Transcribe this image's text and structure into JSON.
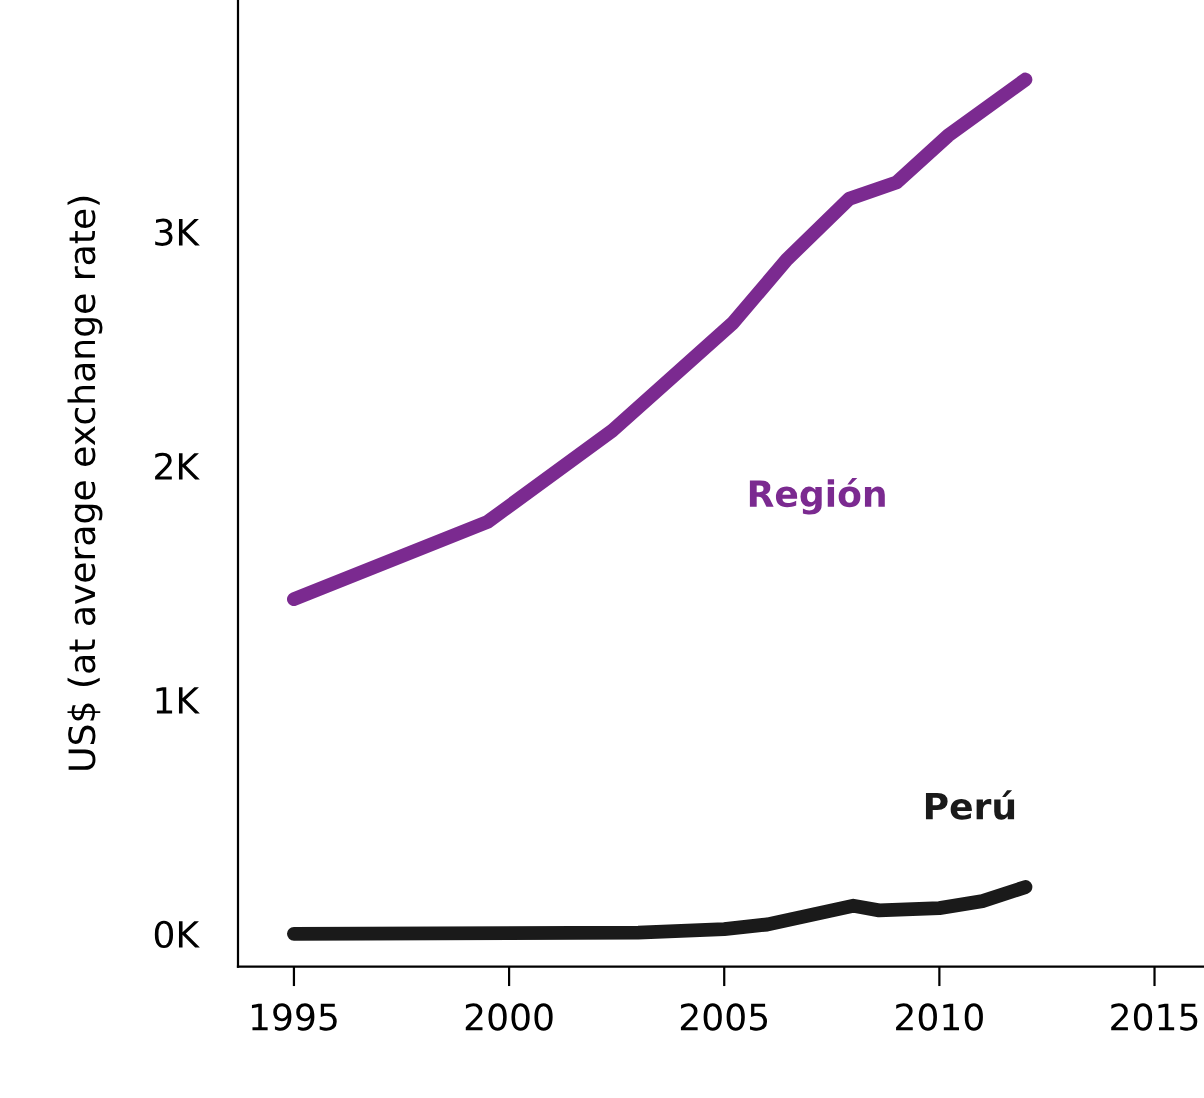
{
  "chart_data": {
    "type": "line",
    "ylabel": "US$ (at average exchange rate)",
    "xlim": [
      1993.7,
      2016.15
    ],
    "xticks": [
      1995,
      2000,
      2005,
      2010,
      2015
    ],
    "ylim": [
      -140,
      3990
    ],
    "yticks": [
      {
        "value": 0,
        "label": "0K"
      },
      {
        "value": 1000,
        "label": "1K"
      },
      {
        "value": 2000,
        "label": "2K"
      },
      {
        "value": 3000,
        "label": "3K"
      }
    ],
    "grid": false,
    "legend": false,
    "marker": "none",
    "line_style": "solid",
    "series": [
      {
        "name": "Región",
        "color": "#7b2a90",
        "x": [
          1995,
          1999.5,
          2002.4,
          2005.2,
          2006.45,
          2007.9,
          2009.0,
          2010.2,
          2012.0
        ],
        "values": [
          1430,
          1760,
          2150,
          2610,
          2880,
          3140,
          3210,
          3410,
          3650
        ]
      },
      {
        "name": "Perú",
        "color": "#1a1a1a",
        "x": [
          1995,
          2003,
          2005,
          2006,
          2008,
          2008.6,
          2010,
          2011,
          2012
        ],
        "values": [
          0,
          5,
          20,
          40,
          120,
          100,
          110,
          140,
          200
        ]
      }
    ]
  }
}
